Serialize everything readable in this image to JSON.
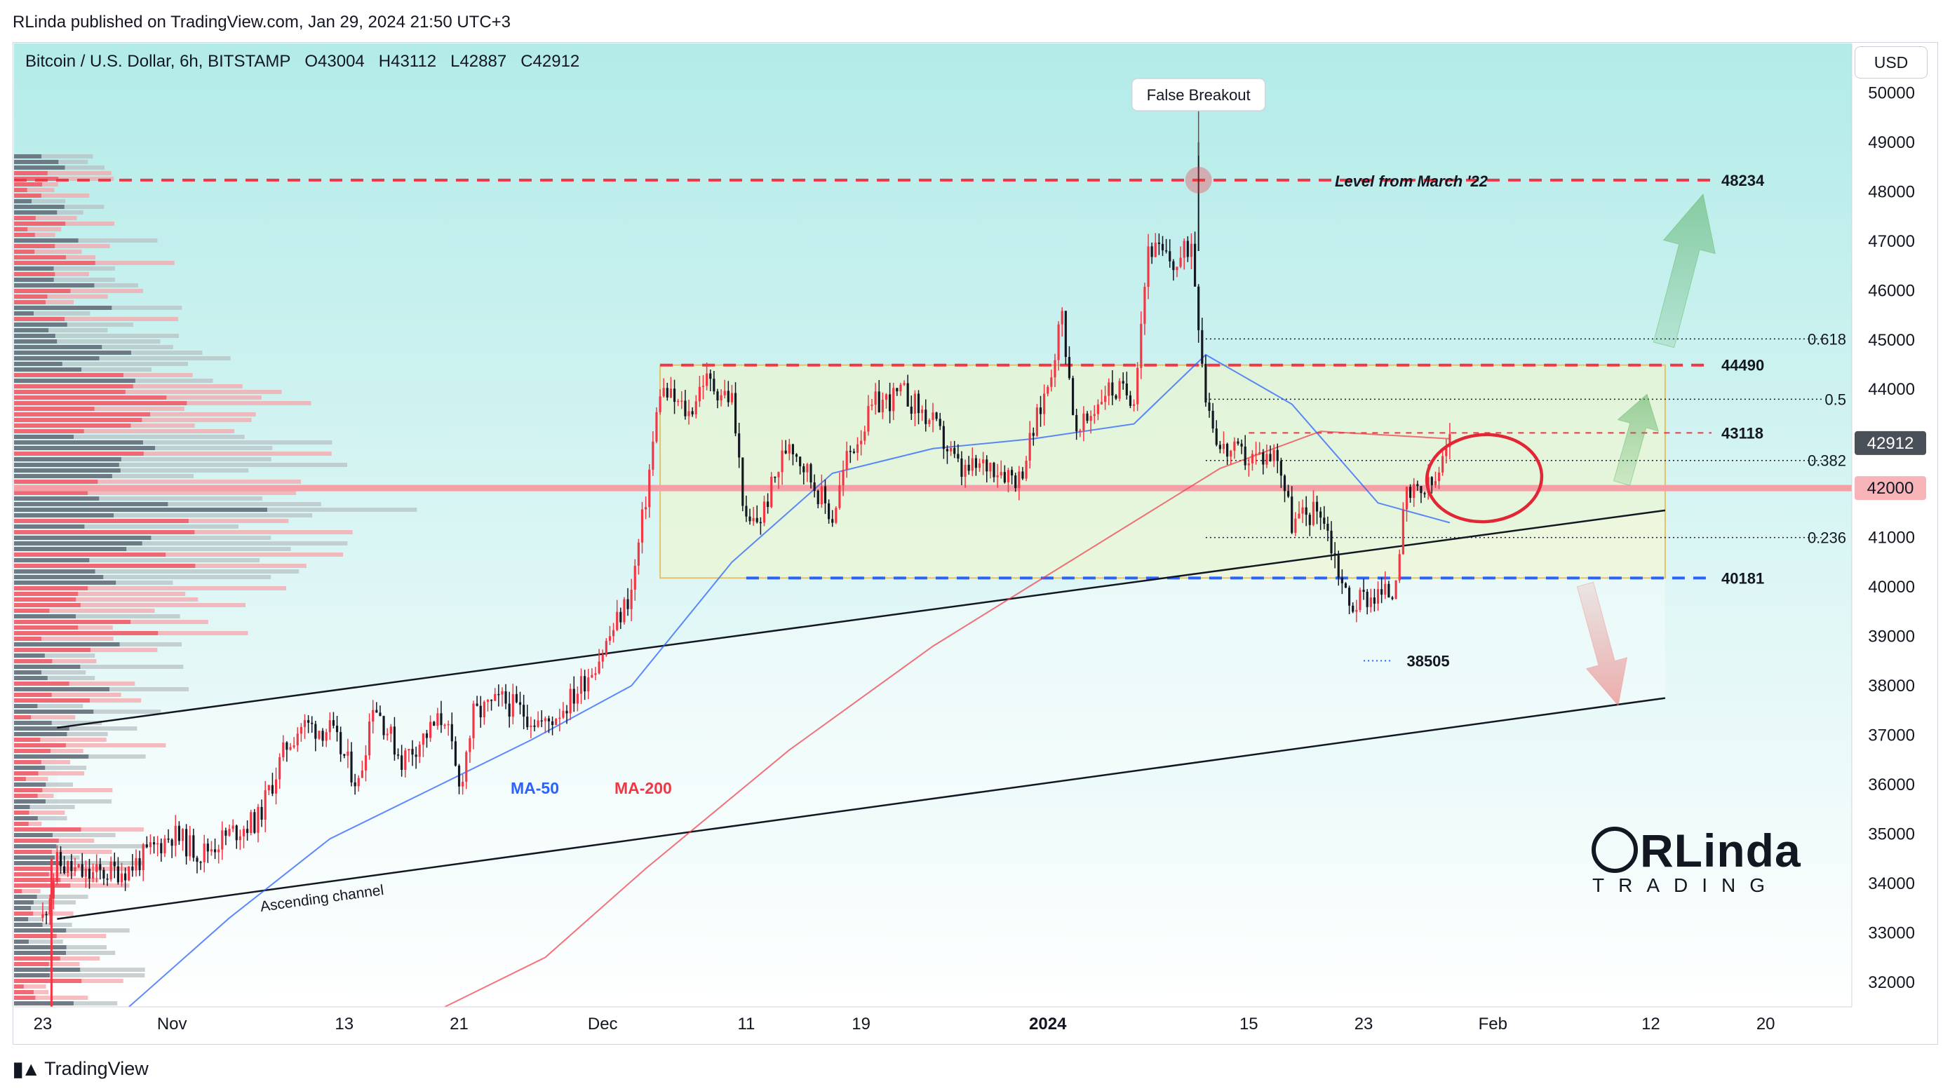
{
  "header": {
    "published": "RLinda published on TradingView.com, Jan 29, 2024 21:50 UTC+3"
  },
  "symbol": {
    "name": "Bitcoin / U.S. Dollar, 6h, BITSTAMP",
    "open": "O43004",
    "high": "H43112",
    "low": "L42887",
    "close": "C42912"
  },
  "currency_button": "USD",
  "footer": {
    "brand": "TradingView",
    "logo_icon": "tradingview-logo-icon"
  },
  "branding_watermark": {
    "top": "RLinda",
    "bottom": "TRADING"
  },
  "colors": {
    "bullish": "#f23645",
    "bearish": "#131722",
    "ma50": "#2962ff",
    "ma200": "#f23645",
    "resistance": "#f23645",
    "support": "#2962ff",
    "background_top": "#b2ebe8",
    "background_bottom": "#ffffff"
  },
  "chart_data": {
    "type": "candlestick",
    "symbol": "BTCUSD",
    "timeframe": "6h",
    "ylim": [
      31500,
      51000
    ],
    "y_ticks": [
      32000,
      33000,
      34000,
      35000,
      36000,
      37000,
      38000,
      39000,
      40000,
      41000,
      42000,
      43000,
      44000,
      45000,
      46000,
      47000,
      48000,
      49000,
      50000
    ],
    "x_labels": [
      {
        "label": "23",
        "date": "2023-10-23"
      },
      {
        "label": "Nov",
        "date": "2023-11-01"
      },
      {
        "label": "13",
        "date": "2023-11-13"
      },
      {
        "label": "21",
        "date": "2023-11-21"
      },
      {
        "label": "Dec",
        "date": "2023-12-01"
      },
      {
        "label": "11",
        "date": "2023-12-11"
      },
      {
        "label": "19",
        "date": "2023-12-19"
      },
      {
        "label": "2024",
        "date": "2024-01-01"
      },
      {
        "label": "15",
        "date": "2024-01-15"
      },
      {
        "label": "23",
        "date": "2024-01-23"
      },
      {
        "label": "Feb",
        "date": "2024-02-01"
      },
      {
        "label": "12",
        "date": "2024-02-12"
      },
      {
        "label": "20",
        "date": "2024-02-20"
      }
    ],
    "price_path": [
      {
        "date": "2023-10-23",
        "price": 33300
      },
      {
        "date": "2023-10-24",
        "price": 34400
      },
      {
        "date": "2023-10-26",
        "price": 34150
      },
      {
        "date": "2023-10-29",
        "price": 34300
      },
      {
        "date": "2023-11-01",
        "price": 35000
      },
      {
        "date": "2023-11-03",
        "price": 34600
      },
      {
        "date": "2023-11-05",
        "price": 35000
      },
      {
        "date": "2023-11-07",
        "price": 35300
      },
      {
        "date": "2023-11-09",
        "price": 36800
      },
      {
        "date": "2023-11-10",
        "price": 37200
      },
      {
        "date": "2023-11-12",
        "price": 37100
      },
      {
        "date": "2023-11-14",
        "price": 36000
      },
      {
        "date": "2023-11-15",
        "price": 37700
      },
      {
        "date": "2023-11-17",
        "price": 36500
      },
      {
        "date": "2023-11-20",
        "price": 37400
      },
      {
        "date": "2023-11-21",
        "price": 35900
      },
      {
        "date": "2023-11-22",
        "price": 37400
      },
      {
        "date": "2023-11-24",
        "price": 37700
      },
      {
        "date": "2023-11-27",
        "price": 37200
      },
      {
        "date": "2023-11-29",
        "price": 37800
      },
      {
        "date": "2023-12-01",
        "price": 38700
      },
      {
        "date": "2023-12-03",
        "price": 39900
      },
      {
        "date": "2023-12-04",
        "price": 41800
      },
      {
        "date": "2023-12-05",
        "price": 44000
      },
      {
        "date": "2023-12-07",
        "price": 43500
      },
      {
        "date": "2023-12-08",
        "price": 44200
      },
      {
        "date": "2023-12-10",
        "price": 43800
      },
      {
        "date": "2023-12-11",
        "price": 41200
      },
      {
        "date": "2023-12-12",
        "price": 41400
      },
      {
        "date": "2023-12-14",
        "price": 43000
      },
      {
        "date": "2023-12-17",
        "price": 41400
      },
      {
        "date": "2023-12-18",
        "price": 42600
      },
      {
        "date": "2023-12-20",
        "price": 43700
      },
      {
        "date": "2023-12-22",
        "price": 43900
      },
      {
        "date": "2023-12-24",
        "price": 43300
      },
      {
        "date": "2023-12-26",
        "price": 42300
      },
      {
        "date": "2023-12-28",
        "price": 42500
      },
      {
        "date": "2023-12-30",
        "price": 42200
      },
      {
        "date": "2024-01-01",
        "price": 44100
      },
      {
        "date": "2024-01-02",
        "price": 45500
      },
      {
        "date": "2024-01-03",
        "price": 43000
      },
      {
        "date": "2024-01-05",
        "price": 44000
      },
      {
        "date": "2024-01-07",
        "price": 43900
      },
      {
        "date": "2024-01-08",
        "price": 46900
      },
      {
        "date": "2024-01-10",
        "price": 46500
      },
      {
        "date": "2024-01-11",
        "price": 47000
      },
      {
        "date": "2024-01-12",
        "price": 43900
      },
      {
        "date": "2024-01-13",
        "price": 42800
      },
      {
        "date": "2024-01-15",
        "price": 42600
      },
      {
        "date": "2024-01-17",
        "price": 42700
      },
      {
        "date": "2024-01-18",
        "price": 41300
      },
      {
        "date": "2024-01-20",
        "price": 41600
      },
      {
        "date": "2024-01-22",
        "price": 39600
      },
      {
        "date": "2024-01-23",
        "price": 39800
      },
      {
        "date": "2024-01-25",
        "price": 39900
      },
      {
        "date": "2024-01-26",
        "price": 41800
      },
      {
        "date": "2024-01-27",
        "price": 41900
      },
      {
        "date": "2024-01-28",
        "price": 42100
      },
      {
        "date": "2024-01-29",
        "price": 42912
      }
    ],
    "false_breakout_high": {
      "date": "2024-01-11",
      "price": 49000
    },
    "ma50_path": [
      {
        "date": "2023-10-29",
        "price": 31500
      },
      {
        "date": "2023-11-05",
        "price": 33300
      },
      {
        "date": "2023-11-12",
        "price": 34900
      },
      {
        "date": "2023-11-19",
        "price": 35900
      },
      {
        "date": "2023-11-26",
        "price": 36900
      },
      {
        "date": "2023-12-03",
        "price": 38000
      },
      {
        "date": "2023-12-10",
        "price": 40500
      },
      {
        "date": "2023-12-17",
        "price": 42300
      },
      {
        "date": "2023-12-24",
        "price": 42800
      },
      {
        "date": "2023-12-31",
        "price": 43000
      },
      {
        "date": "2024-01-07",
        "price": 43300
      },
      {
        "date": "2024-01-12",
        "price": 44700
      },
      {
        "date": "2024-01-18",
        "price": 43700
      },
      {
        "date": "2024-01-24",
        "price": 41700
      },
      {
        "date": "2024-01-29",
        "price": 41300
      }
    ],
    "ma200_path": [
      {
        "date": "2023-11-20",
        "price": 31500
      },
      {
        "date": "2023-11-27",
        "price": 32500
      },
      {
        "date": "2023-12-04",
        "price": 34300
      },
      {
        "date": "2023-12-14",
        "price": 36700
      },
      {
        "date": "2023-12-24",
        "price": 38800
      },
      {
        "date": "2024-01-03",
        "price": 40600
      },
      {
        "date": "2024-01-13",
        "price": 42400
      },
      {
        "date": "2024-01-20",
        "price": 43150
      },
      {
        "date": "2024-01-29",
        "price": 43000
      }
    ],
    "levels": [
      {
        "price": 48234,
        "label": "48234",
        "style": "dashed-red"
      },
      {
        "price": 44490,
        "label": "44490",
        "style": "dashed-red"
      },
      {
        "price": 43118,
        "label": "43118",
        "style": "dashed-red-thin"
      },
      {
        "price": 42000,
        "label": "42000",
        "style": "solid-red"
      },
      {
        "price": 40181,
        "label": "40181",
        "style": "dashed-blue"
      },
      {
        "price": 38505,
        "label": "38505",
        "style": "dotted-blue"
      }
    ],
    "fibonacci": [
      {
        "ratio": "0.618",
        "price": 45020
      },
      {
        "ratio": "0.5",
        "price": 43800
      },
      {
        "ratio": "0.382",
        "price": 42560
      },
      {
        "ratio": "0.236",
        "price": 41000
      }
    ],
    "range_box": {
      "x_start": "2023-12-05",
      "x_end": "2024-02-13",
      "top": 44490,
      "bottom": 40181
    },
    "ascending_channel": {
      "upper": [
        {
          "date": "2023-10-24",
          "price": 37150
        },
        {
          "date": "2024-02-13",
          "price": 41550
        }
      ],
      "lower": [
        {
          "date": "2023-10-24",
          "price": 33280
        },
        {
          "date": "2024-02-13",
          "price": 37750
        }
      ]
    },
    "last_price": 42912,
    "annotations": [
      {
        "text": "False Breakout",
        "kind": "callout"
      },
      {
        "text": "Level from March '22",
        "kind": "level-label"
      },
      {
        "text": "MA-50",
        "kind": "series-label"
      },
      {
        "text": "MA-200",
        "kind": "series-label"
      },
      {
        "text": "Ascending channel",
        "kind": "channel-label"
      }
    ],
    "arrows": [
      {
        "direction": "up",
        "color": "green",
        "target": 48234
      },
      {
        "direction": "up",
        "color": "green",
        "target": 44490
      },
      {
        "direction": "down",
        "color": "red",
        "target": 37500
      }
    ],
    "grid": false,
    "volume_profile": "left-side horizontal bars, red/dark mixed"
  }
}
